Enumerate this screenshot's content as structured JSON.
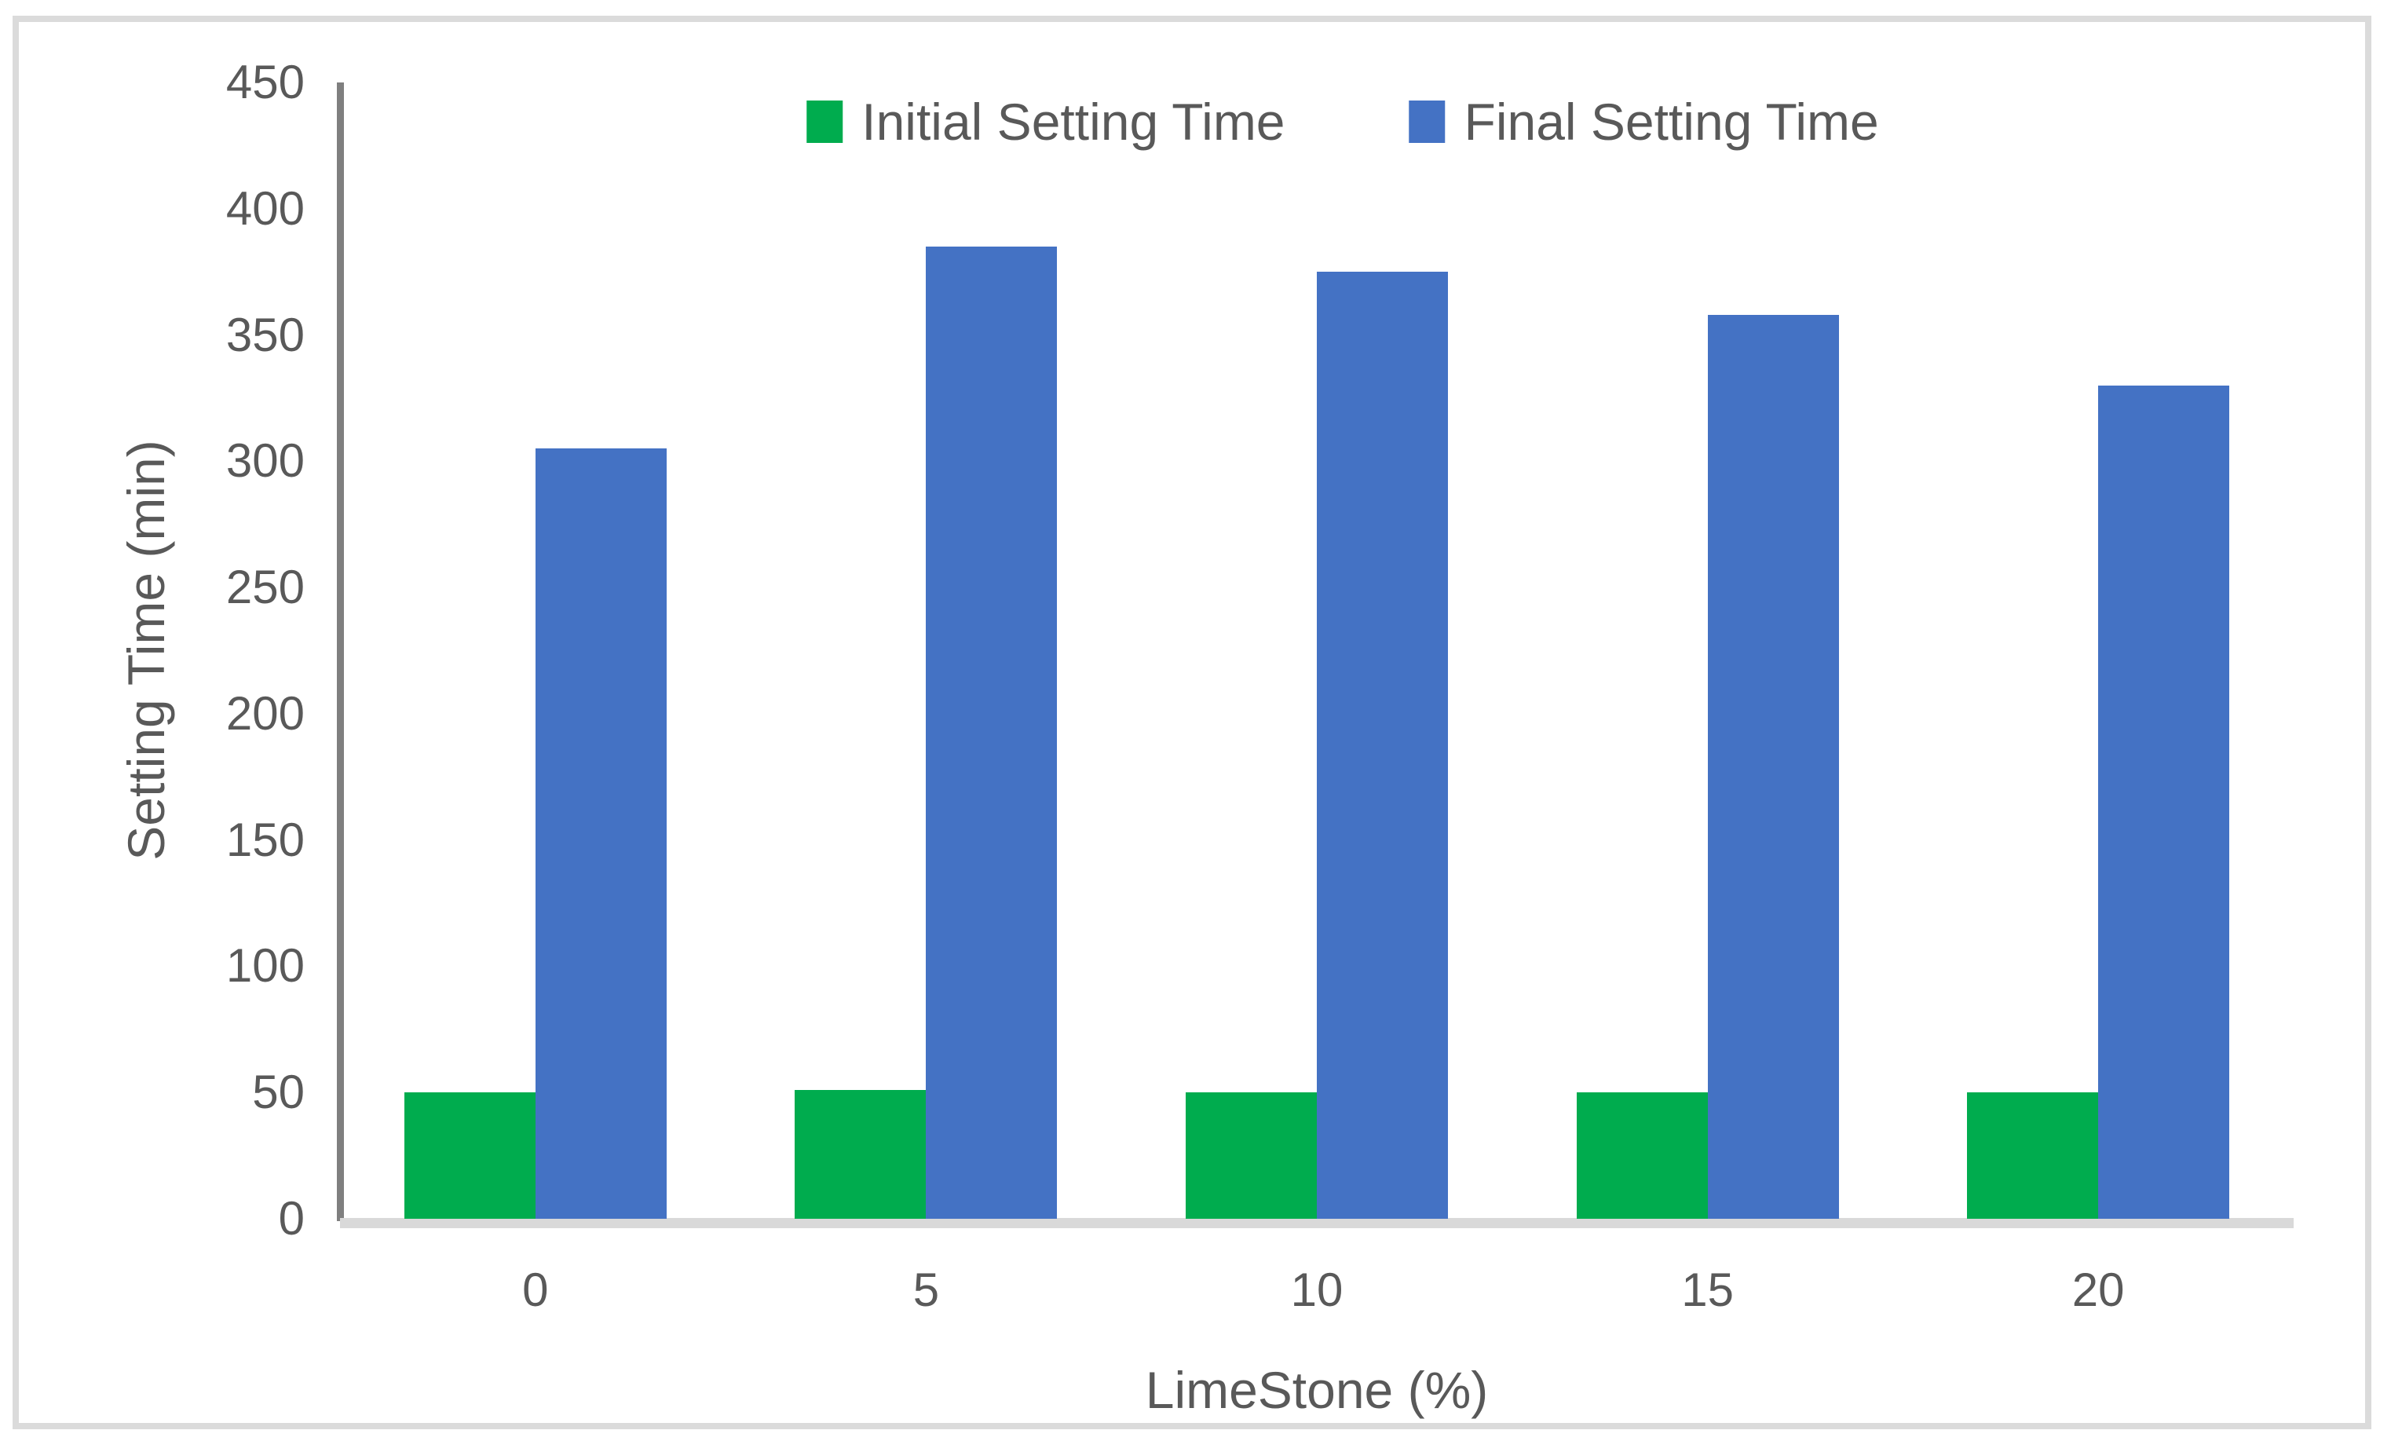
{
  "chart_data": {
    "type": "bar",
    "title": "",
    "categories": [
      "0",
      "5",
      "10",
      "15",
      "20"
    ],
    "series": [
      {
        "name": "Initial Setting Time",
        "color": "#00AC4E",
        "values": [
          50,
          51,
          50,
          50,
          50
        ]
      },
      {
        "name": "Final Setting Time",
        "color": "#4472C4",
        "values": [
          305,
          385,
          375,
          358,
          330
        ]
      }
    ],
    "xlabel": "LimeStone (%)",
    "ylabel": "Setting Time (min)",
    "ylim": [
      0,
      450
    ],
    "yticks": [
      0,
      50,
      100,
      150,
      200,
      250,
      300,
      350,
      400,
      450
    ],
    "grid": false,
    "legend_position": "top-center"
  },
  "colors": {
    "text": "#595959",
    "y_axis_line": "#7F7F7F",
    "x_baseline": "#D9D9D9",
    "frame_border": "#DBDBDB",
    "background": "#FFFFFF"
  }
}
